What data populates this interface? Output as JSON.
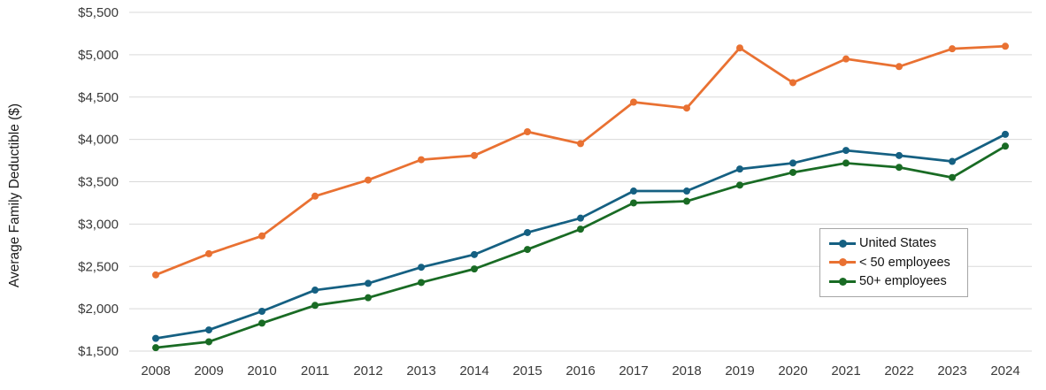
{
  "chart_data": {
    "type": "line",
    "title": "",
    "ylabel": "Average Family Deductible ($)",
    "xlabel": "",
    "categories": [
      "2008",
      "2009",
      "2010",
      "2011",
      "2012",
      "2013",
      "2014",
      "2015",
      "2016",
      "2017",
      "2018",
      "2019",
      "2020",
      "2021",
      "2022",
      "2023",
      "2024"
    ],
    "series": [
      {
        "name": "United States",
        "color": "#156082",
        "values": [
          1650,
          1750,
          1970,
          2220,
          2300,
          2490,
          2640,
          2900,
          3070,
          3390,
          3390,
          3650,
          3720,
          3870,
          3810,
          3740,
          4060
        ]
      },
      {
        "name": "< 50 employees",
        "color": "#E97132",
        "values": [
          2400,
          2650,
          2860,
          3330,
          3520,
          3760,
          3810,
          4090,
          3950,
          4440,
          4370,
          5080,
          4670,
          4950,
          4860,
          5070,
          5100
        ]
      },
      {
        "name": "50+ employees",
        "color": "#196B24",
        "values": [
          1540,
          1610,
          1830,
          2040,
          2130,
          2310,
          2470,
          2700,
          2940,
          3250,
          3270,
          3460,
          3610,
          3720,
          3670,
          3550,
          3920
        ]
      }
    ],
    "ylim": [
      1500,
      5500
    ],
    "yticks": [
      1500,
      2000,
      2500,
      3000,
      3500,
      4000,
      4500,
      5000,
      5500
    ],
    "ytick_labels": [
      "$1,500",
      "$2,000",
      "$2,500",
      "$3,000",
      "$3,500",
      "$4,000",
      "$4,500",
      "$5,000",
      "$5,500"
    ],
    "grid": "horizontal",
    "grid_color": "#D9D9D9",
    "tick_label_color": "#3a3a3a",
    "legend_position": "inside-bottom-right",
    "marker": "circle"
  }
}
